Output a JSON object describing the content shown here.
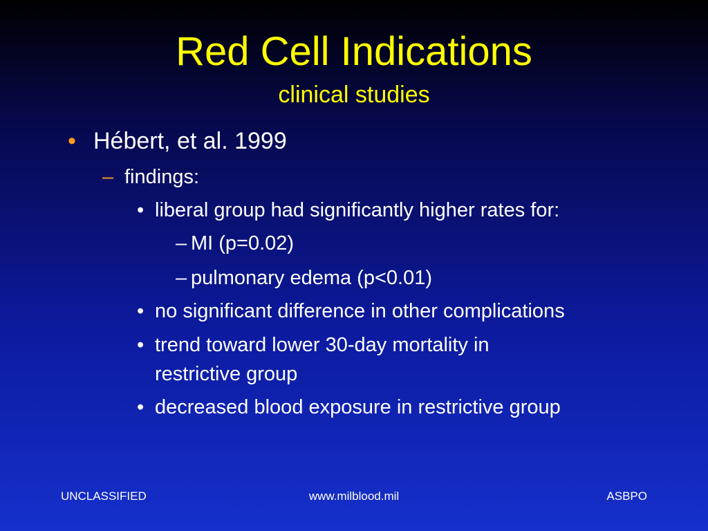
{
  "slide": {
    "title": "Red Cell Indications",
    "subtitle": "clinical studies"
  },
  "bullets": {
    "level1": {
      "marker": "•",
      "text": "Hébert, et al.  1999"
    },
    "level2": {
      "marker": "–",
      "text": "findings:"
    },
    "level3_items": [
      {
        "marker": "•",
        "text": "liberal group had significantly higher rates for:",
        "subitems": [
          {
            "marker": "–",
            "text": "MI (p=0.02)"
          },
          {
            "marker": "–",
            "text": "pulmonary edema (p<0.01)"
          }
        ]
      },
      {
        "marker": "•",
        "text": "no significant difference in other complications"
      },
      {
        "marker": "•",
        "text_lines": [
          "trend toward lower 30-day mortality in",
          "restrictive group"
        ]
      },
      {
        "marker": "•",
        "text": "decreased blood exposure in restrictive group"
      }
    ]
  },
  "footer": {
    "left": "UNCLASSIFIED",
    "center": "www.milblood.mil",
    "right": "ASBPO"
  },
  "colors": {
    "title": "#ffff00",
    "level1_marker": "#ff9a1a",
    "level2_marker": "#ff9a1a",
    "body_text": "#ffffff"
  }
}
